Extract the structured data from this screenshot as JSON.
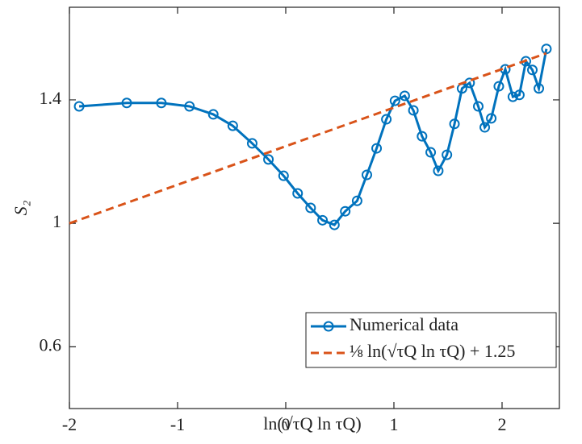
{
  "chart_data": {
    "type": "line",
    "xlabel": "ln(√τQ ln τQ)",
    "ylabel": "S₂",
    "xlim": [
      -2,
      2.53
    ],
    "xticks": [
      -2,
      -1,
      0,
      1,
      2
    ],
    "ylim": [
      0.4,
      1.7
    ],
    "yticks": [
      0.6,
      1,
      1.4
    ],
    "legend": "lower right",
    "series": [
      {
        "name": "Numerical data",
        "color": "#0072bd",
        "marker": "circle",
        "linestyle": "solid",
        "x": [
          -1.91,
          -1.47,
          -1.15,
          -0.89,
          -0.67,
          -0.49,
          -0.31,
          -0.16,
          -0.02,
          0.11,
          0.23,
          0.34,
          0.45,
          0.55,
          0.66,
          0.75,
          0.84,
          0.93,
          1.01,
          1.1,
          1.18,
          1.26,
          1.34,
          1.41,
          1.49,
          1.56,
          1.63,
          1.7,
          1.78,
          1.84,
          1.9,
          1.97,
          2.03,
          2.1,
          2.16,
          2.22,
          2.28,
          2.34,
          2.41
        ],
        "values": [
          1.379,
          1.39,
          1.39,
          1.379,
          1.353,
          1.316,
          1.259,
          1.207,
          1.154,
          1.097,
          1.05,
          1.01,
          0.995,
          1.039,
          1.073,
          1.157,
          1.243,
          1.337,
          1.397,
          1.413,
          1.366,
          1.282,
          1.23,
          1.17,
          1.222,
          1.322,
          1.437,
          1.455,
          1.379,
          1.311,
          1.34,
          1.444,
          1.499,
          1.41,
          1.416,
          1.525,
          1.497,
          1.437,
          1.565
        ]
      },
      {
        "name": "⅛ ln(√τQ ln τQ) + 1.25",
        "color": "#d95319",
        "linestyle": "dashed",
        "x": [
          -2,
          2.41
        ],
        "values": [
          1.0,
          1.551
        ]
      }
    ]
  }
}
